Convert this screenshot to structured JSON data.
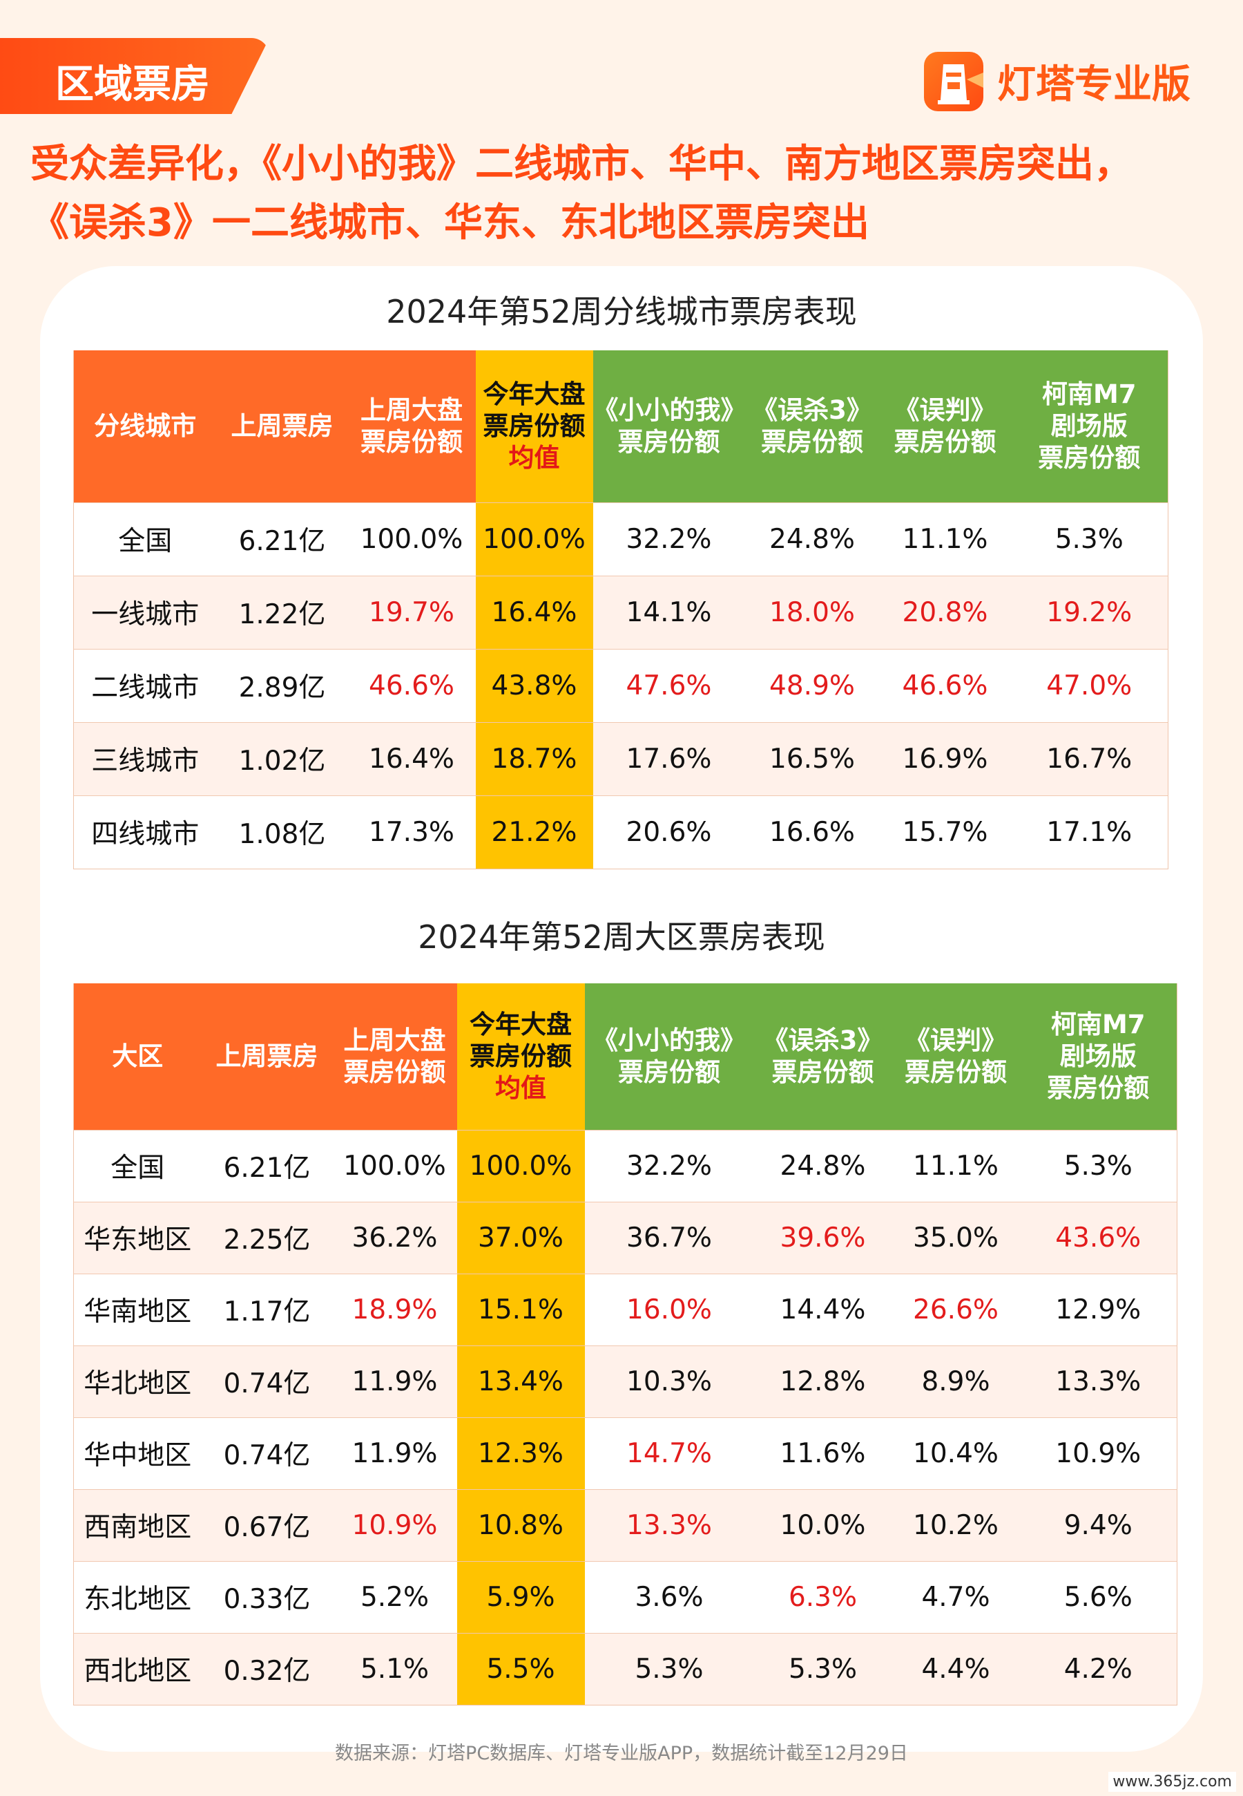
{
  "tag_label": "区域票房",
  "brand_name": "灯塔专业版",
  "headline": [
    "受众差异化，《小小的我》二线城市、华中、南方地区票房突出，",
    "《误杀3》一二线城市、华东、东北地区票房突出"
  ],
  "table1": {
    "title": "2024年第52周分线城市票房表现",
    "headers": [
      [
        "分线城市"
      ],
      [
        "上周票房"
      ],
      [
        "上周大盘",
        "票房份额"
      ],
      [
        "今年大盘",
        "票房份额",
        "均值"
      ],
      [
        "《小小的我》",
        "票房份额"
      ],
      [
        "《误杀3》",
        "票房份额"
      ],
      [
        "《误判》",
        "票房份额"
      ],
      [
        "柯南M7",
        "剧场版",
        "票房份额"
      ]
    ],
    "rows": [
      {
        "cells": [
          "全国",
          "6.21亿",
          "100.0%",
          "100.0%",
          "32.2%",
          "24.8%",
          "11.1%",
          "5.3%"
        ],
        "red": []
      },
      {
        "cells": [
          "一线城市",
          "1.22亿",
          "19.7%",
          "16.4%",
          "14.1%",
          "18.0%",
          "20.8%",
          "19.2%"
        ],
        "red": [
          2,
          5,
          6,
          7
        ]
      },
      {
        "cells": [
          "二线城市",
          "2.89亿",
          "46.6%",
          "43.8%",
          "47.6%",
          "48.9%",
          "46.6%",
          "47.0%"
        ],
        "red": [
          2,
          4,
          5,
          6,
          7
        ]
      },
      {
        "cells": [
          "三线城市",
          "1.02亿",
          "16.4%",
          "18.7%",
          "17.6%",
          "16.5%",
          "16.9%",
          "16.7%"
        ],
        "red": []
      },
      {
        "cells": [
          "四线城市",
          "1.08亿",
          "17.3%",
          "21.2%",
          "20.6%",
          "16.6%",
          "15.7%",
          "17.1%"
        ],
        "red": []
      }
    ]
  },
  "table2": {
    "title": "2024年第52周大区票房表现",
    "headers": [
      [
        "大区"
      ],
      [
        "上周票房"
      ],
      [
        "上周大盘",
        "票房份额"
      ],
      [
        "今年大盘",
        "票房份额",
        "均值"
      ],
      [
        "《小小的我》",
        "票房份额"
      ],
      [
        "《误杀3》",
        "票房份额"
      ],
      [
        "《误判》",
        "票房份额"
      ],
      [
        "柯南M7",
        "剧场版",
        "票房份额"
      ]
    ],
    "rows": [
      {
        "cells": [
          "全国",
          "6.21亿",
          "100.0%",
          "100.0%",
          "32.2%",
          "24.8%",
          "11.1%",
          "5.3%"
        ],
        "red": []
      },
      {
        "cells": [
          "华东地区",
          "2.25亿",
          "36.2%",
          "37.0%",
          "36.7%",
          "39.6%",
          "35.0%",
          "43.6%"
        ],
        "red": [
          5,
          7
        ]
      },
      {
        "cells": [
          "华南地区",
          "1.17亿",
          "18.9%",
          "15.1%",
          "16.0%",
          "14.4%",
          "26.6%",
          "12.9%"
        ],
        "red": [
          2,
          4,
          6
        ]
      },
      {
        "cells": [
          "华北地区",
          "0.74亿",
          "11.9%",
          "13.4%",
          "10.3%",
          "12.8%",
          "8.9%",
          "13.3%"
        ],
        "red": []
      },
      {
        "cells": [
          "华中地区",
          "0.74亿",
          "11.9%",
          "12.3%",
          "14.7%",
          "11.6%",
          "10.4%",
          "10.9%"
        ],
        "red": [
          4
        ]
      },
      {
        "cells": [
          "西南地区",
          "0.67亿",
          "10.9%",
          "10.8%",
          "13.3%",
          "10.0%",
          "10.2%",
          "9.4%"
        ],
        "red": [
          2,
          4
        ]
      },
      {
        "cells": [
          "东北地区",
          "0.33亿",
          "5.2%",
          "5.9%",
          "3.6%",
          "6.3%",
          "4.7%",
          "5.6%"
        ],
        "red": [
          5
        ]
      },
      {
        "cells": [
          "西北地区",
          "0.32亿",
          "5.1%",
          "5.5%",
          "5.3%",
          "5.3%",
          "4.4%",
          "4.2%"
        ],
        "red": []
      }
    ]
  },
  "footer": "数据来源：灯塔PC数据库、灯塔专业版APP，数据统计截至12月29日",
  "watermark": "www.365jz.com",
  "colors": {
    "orange": "#ff6a28",
    "yellow": "#ffc300",
    "green": "#6faf43",
    "red": "#e31c1c"
  }
}
